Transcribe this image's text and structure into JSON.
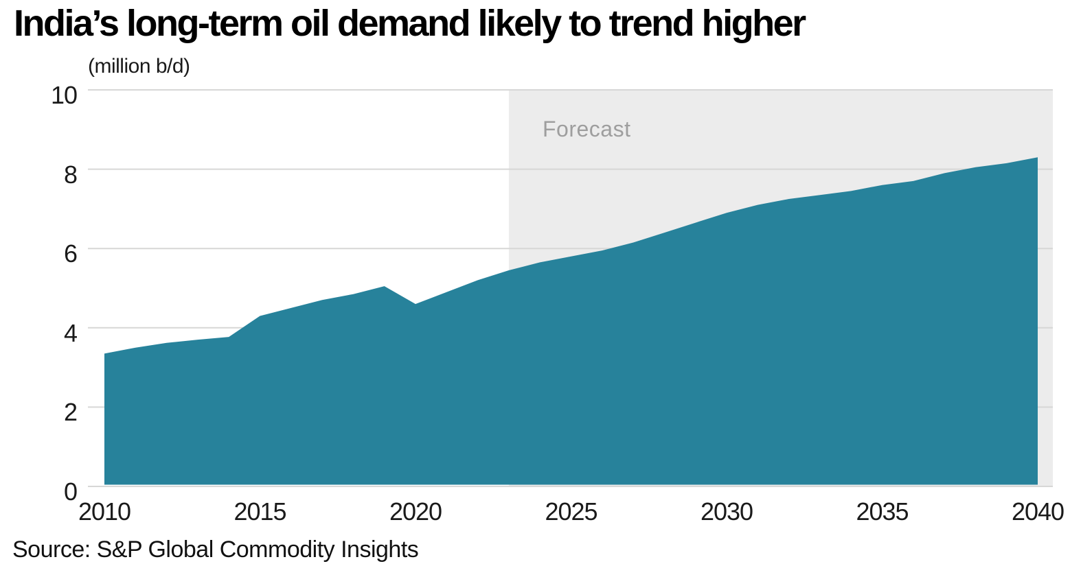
{
  "header": {
    "title": "India’s long-term oil demand likely to trend higher",
    "unit_label": "(million b/d)"
  },
  "footer": {
    "source": "Source: S&P Global Commodity Insights"
  },
  "chart_data": {
    "type": "area",
    "title": "India’s long-term oil demand likely to trend higher",
    "ylabel": "(million b/d)",
    "xlabel": "",
    "x": [
      2010,
      2011,
      2012,
      2013,
      2014,
      2015,
      2016,
      2017,
      2018,
      2019,
      2020,
      2021,
      2022,
      2023,
      2024,
      2025,
      2026,
      2027,
      2028,
      2029,
      2030,
      2031,
      2032,
      2033,
      2034,
      2035,
      2036,
      2037,
      2038,
      2039,
      2040
    ],
    "values": [
      3.35,
      3.5,
      3.62,
      3.7,
      3.77,
      4.3,
      4.5,
      4.7,
      4.85,
      5.05,
      4.6,
      4.9,
      5.2,
      5.45,
      5.65,
      5.8,
      5.95,
      6.15,
      6.4,
      6.65,
      6.9,
      7.1,
      7.25,
      7.35,
      7.45,
      7.6,
      7.7,
      7.9,
      8.05,
      8.15,
      8.3
    ],
    "ylim": [
      0,
      10
    ],
    "yticks": [
      0,
      2,
      4,
      6,
      8,
      10
    ],
    "xticks": [
      2010,
      2015,
      2020,
      2025,
      2030,
      2035,
      2040
    ],
    "grid": "horizontal",
    "legend": "none",
    "forecast_label": "Forecast",
    "forecast_start": 2023,
    "colors": {
      "area": "#27829B",
      "forecast_band": "#ECECEC",
      "gridline": "#D7D7D6",
      "axis_text": "#1A1A1A",
      "forecast_text": "#9E9E9E"
    }
  }
}
